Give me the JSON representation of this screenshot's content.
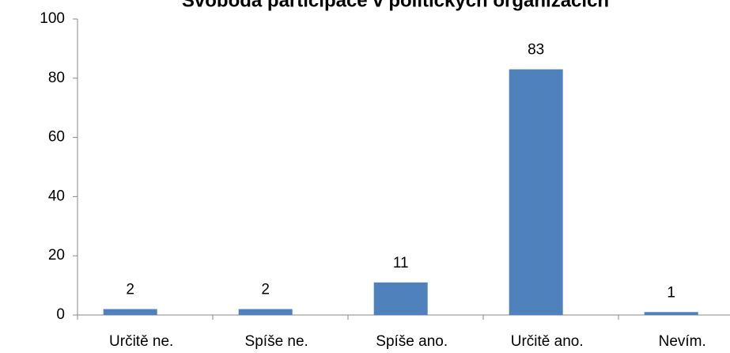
{
  "chart_data": {
    "type": "bar",
    "title": "Svoboda participace v politických organizacích",
    "categories": [
      "Určitě ne.",
      "Spíše ne.",
      "Spíše ano.",
      "Určitě ano.",
      "Nevím."
    ],
    "values": [
      2,
      2,
      11,
      83,
      1
    ],
    "color": "#4f81bd",
    "ylim": [
      0,
      100
    ],
    "yticks": [
      0,
      20,
      40,
      60,
      80,
      100
    ],
    "grid": false
  }
}
